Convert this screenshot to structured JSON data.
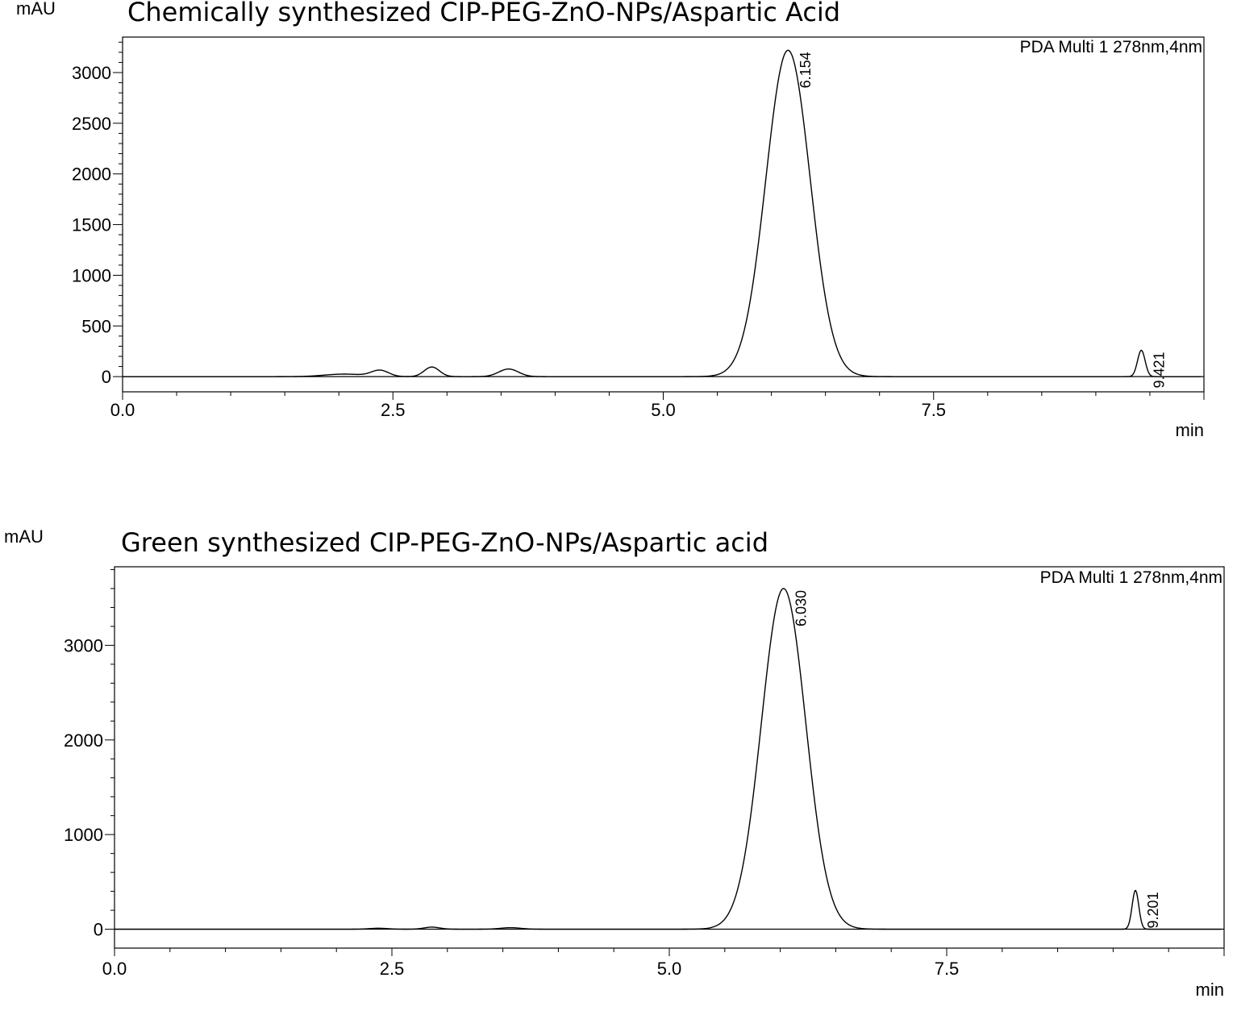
{
  "chart_data": [
    {
      "type": "line",
      "title": "Chemically synthesized  CIP-PEG-ZnO-NPs/Aspartic Acid",
      "ylabel": "mAU",
      "xlabel": "min",
      "legend": "PDA Multi 1 278nm,4nm",
      "legend_position": "top-right",
      "xlim": [
        0,
        10
      ],
      "ylim": [
        -150,
        3350
      ],
      "x_ticks": [
        "0.0",
        "2.5",
        "5.0",
        "7.5"
      ],
      "y_ticks": [
        "0",
        "500",
        "1000",
        "1500",
        "2000",
        "2500",
        "3000"
      ],
      "peaks": [
        {
          "x": 2.05,
          "y": 25,
          "w": 0.18
        },
        {
          "x": 2.38,
          "y": 60,
          "w": 0.08
        },
        {
          "x": 2.86,
          "y": 95,
          "w": 0.07
        },
        {
          "x": 3.57,
          "y": 75,
          "w": 0.09
        },
        {
          "x": 6.154,
          "y": 3220,
          "w": 0.205,
          "label": "6.154"
        },
        {
          "x": 9.421,
          "y": 260,
          "w": 0.035,
          "label": "9.421"
        }
      ]
    },
    {
      "type": "line",
      "title": "Green synthesized CIP-PEG-ZnO-NPs/Aspartic acid",
      "ylabel": "mAU",
      "xlabel": "min",
      "legend": "PDA Multi 1 278nm,4nm",
      "legend_position": "top-right",
      "xlim": [
        0,
        10
      ],
      "ylim": [
        -200,
        3830
      ],
      "x_ticks": [
        "0.0",
        "2.5",
        "5.0",
        "7.5"
      ],
      "y_ticks": [
        "0",
        "1000",
        "2000",
        "3000"
      ],
      "peaks": [
        {
          "x": 2.38,
          "y": 10,
          "w": 0.08
        },
        {
          "x": 2.86,
          "y": 22,
          "w": 0.07
        },
        {
          "x": 3.57,
          "y": 16,
          "w": 0.09
        },
        {
          "x": 6.03,
          "y": 3600,
          "w": 0.2,
          "label": "6.030"
        },
        {
          "x": 9.201,
          "y": 410,
          "w": 0.03,
          "label": "9.201"
        }
      ]
    }
  ]
}
